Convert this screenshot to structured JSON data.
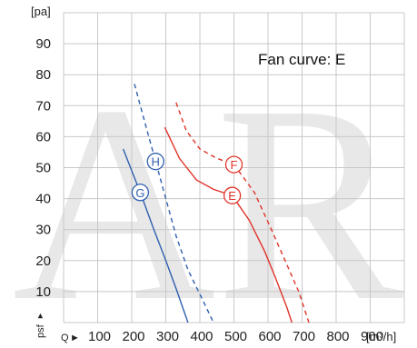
{
  "chart_data": {
    "type": "line",
    "title": "",
    "annotation": "Fan curve: E",
    "y_unit": "[pa]",
    "y_side_label": "psf",
    "x_label": "Q",
    "x_unit": "[m³/h]",
    "xlim": [
      0,
      1000
    ],
    "ylim": [
      0,
      100
    ],
    "x_ticks": [
      "100",
      "200",
      "300",
      "400",
      "500",
      "600",
      "700",
      "800",
      "900"
    ],
    "y_ticks": [
      "10",
      "20",
      "30",
      "40",
      "50",
      "60",
      "70",
      "80",
      "90"
    ],
    "grid": true,
    "watermark": "AR",
    "colors": {
      "blue": "#2f5fb0",
      "red": "#e0342a",
      "grid": "#c8c8c8"
    },
    "series": [
      {
        "name": "G",
        "color": "#2f5fb0",
        "dash": false,
        "marker": [
          225,
          42
        ],
        "points": [
          [
            175,
            56
          ],
          [
            225,
            42
          ],
          [
            265,
            30
          ],
          [
            300,
            20
          ],
          [
            330,
            11
          ],
          [
            365,
            0
          ]
        ]
      },
      {
        "name": "H",
        "color": "#2f5fb0",
        "dash": true,
        "marker": [
          270,
          52
        ],
        "points": [
          [
            208,
            77
          ],
          [
            240,
            64
          ],
          [
            270,
            52
          ],
          [
            300,
            40
          ],
          [
            330,
            28
          ],
          [
            365,
            17
          ],
          [
            405,
            8
          ],
          [
            440,
            0
          ]
        ]
      },
      {
        "name": "E",
        "color": "#e0342a",
        "dash": false,
        "marker": [
          495,
          41
        ],
        "points": [
          [
            297,
            63
          ],
          [
            340,
            53
          ],
          [
            390,
            46
          ],
          [
            440,
            43
          ],
          [
            495,
            41
          ],
          [
            545,
            33
          ],
          [
            590,
            23
          ],
          [
            620,
            15
          ],
          [
            655,
            5
          ],
          [
            670,
            0
          ]
        ]
      },
      {
        "name": "F",
        "color": "#e0342a",
        "dash": true,
        "marker": [
          500,
          51
        ],
        "points": [
          [
            330,
            71
          ],
          [
            360,
            62
          ],
          [
            400,
            56
          ],
          [
            450,
            53
          ],
          [
            500,
            51
          ],
          [
            560,
            42
          ],
          [
            610,
            30
          ],
          [
            650,
            20
          ],
          [
            690,
            10
          ],
          [
            720,
            0
          ]
        ]
      }
    ]
  }
}
